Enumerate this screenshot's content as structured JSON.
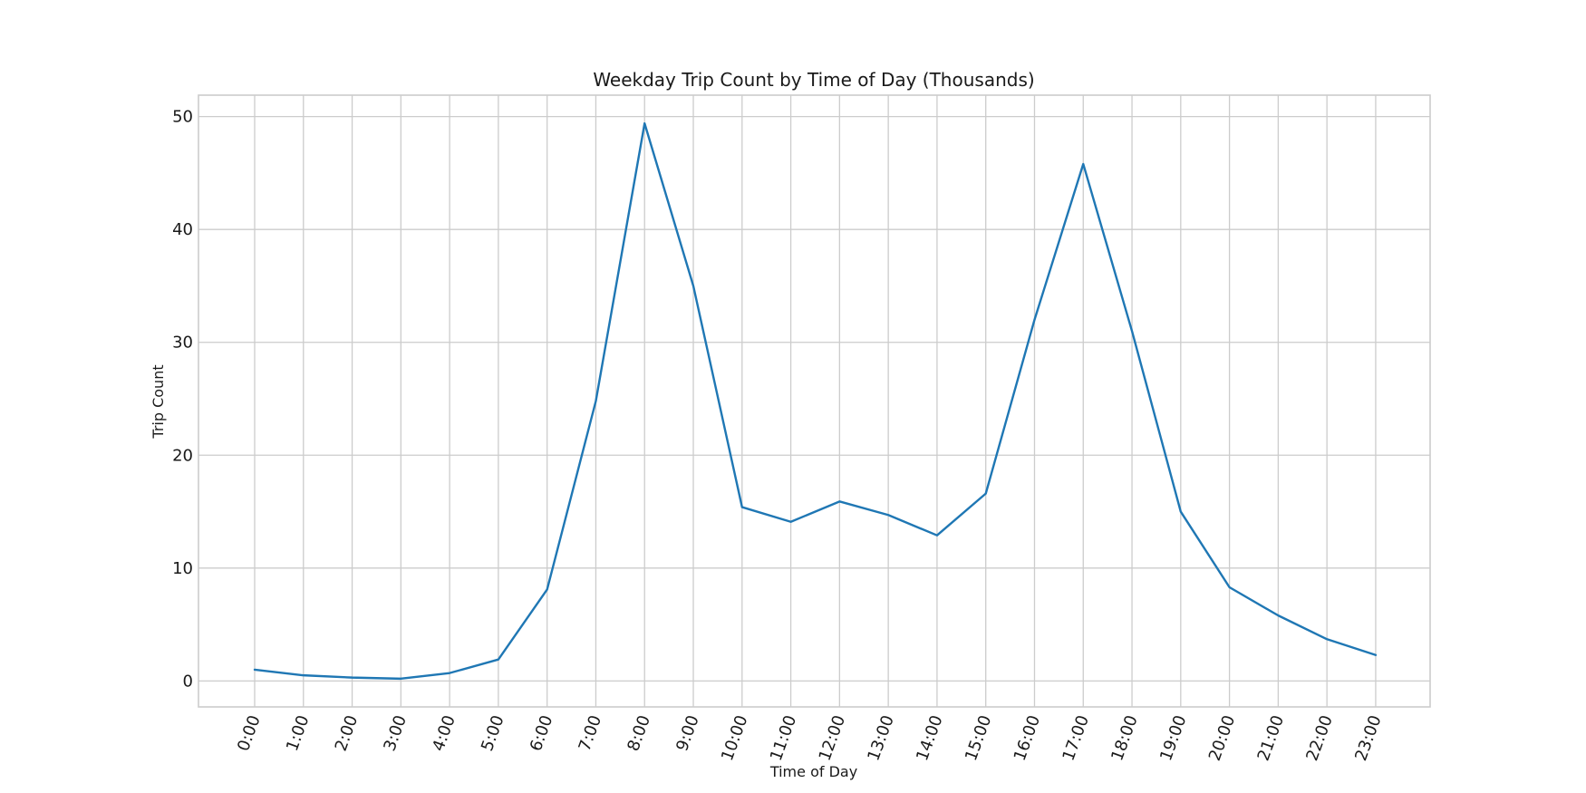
{
  "chart_data": {
    "type": "line",
    "title": "Weekday Trip Count by Time of Day (Thousands)",
    "xlabel": "Time of Day",
    "ylabel": "Trip Count",
    "categories": [
      "0:00",
      "1:00",
      "2:00",
      "3:00",
      "4:00",
      "5:00",
      "6:00",
      "7:00",
      "8:00",
      "9:00",
      "10:00",
      "11:00",
      "12:00",
      "13:00",
      "14:00",
      "15:00",
      "16:00",
      "17:00",
      "18:00",
      "19:00",
      "20:00",
      "21:00",
      "22:00",
      "23:00"
    ],
    "series": [
      {
        "values": [
          1.0,
          0.5,
          0.3,
          0.2,
          0.7,
          1.9,
          8.1,
          24.8,
          49.4,
          35.0,
          15.4,
          14.1,
          15.9,
          14.7,
          12.9,
          16.6,
          32.0,
          45.8,
          31.0,
          15.0,
          8.3,
          5.8,
          3.7,
          2.3
        ],
        "color": "#1f77b4"
      }
    ],
    "yticks": [
      0,
      10,
      20,
      30,
      40,
      50
    ],
    "ylim": [
      -2.3,
      51.9
    ],
    "grid": true,
    "legend": "none"
  }
}
